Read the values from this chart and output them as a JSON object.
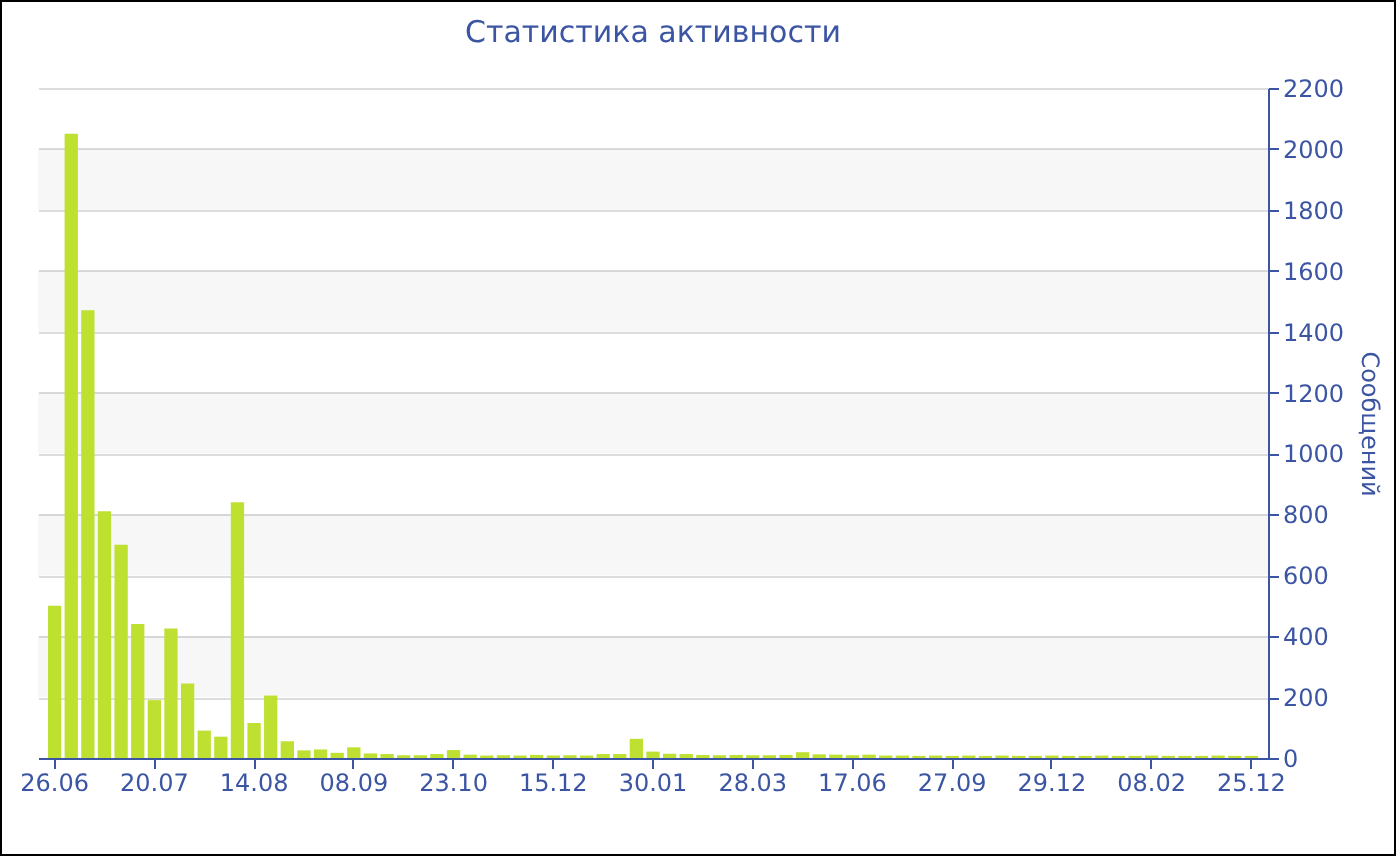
{
  "chart_data": {
    "type": "bar",
    "title": "Статистика активности",
    "ylabel": "Сообщений",
    "categories": [
      "26.06",
      null,
      null,
      null,
      null,
      null,
      "20.07",
      null,
      null,
      null,
      null,
      null,
      "14.08",
      null,
      null,
      null,
      null,
      null,
      "08.09",
      null,
      null,
      null,
      null,
      null,
      "23.10",
      null,
      null,
      null,
      null,
      null,
      "15.12",
      null,
      null,
      null,
      null,
      null,
      "30.01",
      null,
      null,
      null,
      null,
      null,
      "28.03",
      null,
      null,
      null,
      null,
      null,
      "17.06",
      null,
      null,
      null,
      null,
      null,
      "27.09",
      null,
      null,
      null,
      null,
      null,
      "29.12",
      null,
      null,
      null,
      null,
      null,
      "08.02",
      null,
      null,
      null,
      null,
      null,
      "25.12"
    ],
    "values": [
      500,
      2050,
      1470,
      810,
      700,
      440,
      190,
      425,
      245,
      90,
      70,
      840,
      115,
      205,
      55,
      25,
      28,
      17,
      35,
      15,
      13,
      9,
      9,
      13,
      26,
      11,
      8,
      9,
      8,
      10,
      8,
      9,
      8,
      13,
      13,
      63,
      21,
      14,
      13,
      10,
      9,
      10,
      9,
      9,
      10,
      19,
      12,
      11,
      9,
      11,
      8,
      8,
      7,
      8,
      7,
      8,
      7,
      8,
      7,
      7,
      8,
      7,
      7,
      8,
      7,
      7,
      8,
      7,
      7,
      7,
      8,
      7,
      7
    ],
    "color": "#bde031",
    "ylim": [
      0,
      2200
    ],
    "yticks": [
      0,
      200,
      400,
      600,
      800,
      1000,
      1200,
      1400,
      1600,
      1800,
      2000,
      2200
    ],
    "grid": "y"
  }
}
